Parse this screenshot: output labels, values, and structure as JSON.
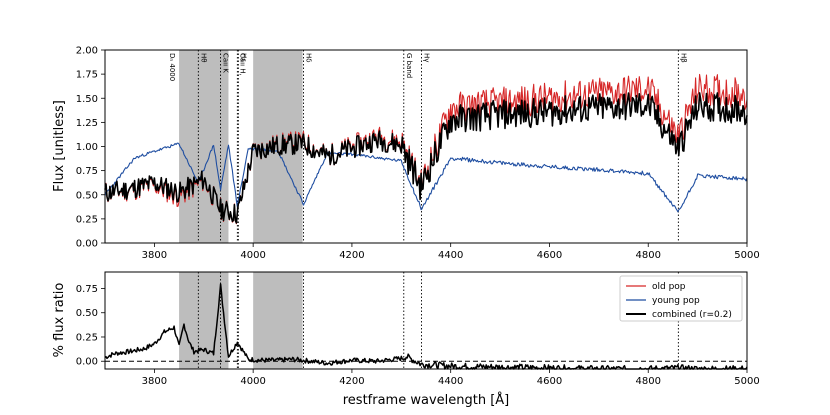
{
  "chart_data": [
    {
      "type": "line",
      "panel": "top",
      "ylabel": "Flux [unitless]",
      "xlim": [
        3700,
        5000
      ],
      "ylim": [
        0.0,
        2.0
      ],
      "xticks": [
        3800,
        4000,
        4200,
        4400,
        4600,
        4800,
        5000
      ],
      "yticks": [
        "0.00",
        "0.25",
        "0.50",
        "0.75",
        "1.00",
        "1.25",
        "1.50",
        "1.75",
        "2.00"
      ],
      "shaded_bands": [
        [
          3850,
          3950
        ],
        [
          4000,
          4100
        ]
      ],
      "band_label": "Dₙ 4000",
      "lines": [
        {
          "label": "Hθ",
          "x": 3889
        },
        {
          "label": "Caıı K",
          "x": 3934
        },
        {
          "label": "Caıı H,",
          "x": 3968
        },
        {
          "label": "Hε",
          "x": 3970
        },
        {
          "label": "Hδ",
          "x": 4102
        },
        {
          "label": "G band",
          "x": 4305
        },
        {
          "label": "Hγ",
          "x": 4341
        },
        {
          "label": "Hβ",
          "x": 4861
        }
      ],
      "series": [
        {
          "name": "old pop",
          "color": "#d62728",
          "x": [
            3700,
            3750,
            3800,
            3850,
            3900,
            3934,
            3968,
            4000,
            4050,
            4100,
            4150,
            4200,
            4250,
            4300,
            4340,
            4400,
            4500,
            4600,
            4700,
            4800,
            4861,
            4900,
            5000
          ],
          "y": [
            0.52,
            0.55,
            0.6,
            0.48,
            0.65,
            0.35,
            0.3,
            0.95,
            1.02,
            1.05,
            0.9,
            1.0,
            1.1,
            1.05,
            0.6,
            1.4,
            1.45,
            1.5,
            1.55,
            1.6,
            1.1,
            1.6,
            1.55
          ]
        },
        {
          "name": "young pop",
          "color": "#1f4ea1",
          "x": [
            3700,
            3760,
            3800,
            3850,
            3889,
            3920,
            3934,
            3950,
            3968,
            3990,
            4050,
            4102,
            4150,
            4200,
            4300,
            4341,
            4400,
            4500,
            4600,
            4700,
            4800,
            4861,
            4900,
            5000
          ],
          "y": [
            0.5,
            0.88,
            0.95,
            1.03,
            0.62,
            1.02,
            0.55,
            1.02,
            0.38,
            0.98,
            0.96,
            0.4,
            0.93,
            0.92,
            0.85,
            0.35,
            0.88,
            0.83,
            0.79,
            0.76,
            0.72,
            0.32,
            0.7,
            0.66
          ]
        },
        {
          "name": "combined (r=0.2)",
          "color": "#000000",
          "x": [
            3700,
            3750,
            3800,
            3850,
            3900,
            3934,
            3968,
            4000,
            4050,
            4100,
            4150,
            4200,
            4250,
            4300,
            4340,
            4400,
            4500,
            4600,
            4700,
            4800,
            4861,
            4900,
            5000
          ],
          "y": [
            0.52,
            0.56,
            0.62,
            0.52,
            0.66,
            0.35,
            0.3,
            0.95,
            1.01,
            1.03,
            0.9,
            0.98,
            1.07,
            1.02,
            0.58,
            1.28,
            1.33,
            1.36,
            1.4,
            1.43,
            0.98,
            1.42,
            1.38
          ]
        }
      ]
    },
    {
      "type": "line",
      "panel": "bottom",
      "ylabel": "% flux ratio",
      "xlabel": "restframe wavelength [Å]",
      "xlim": [
        3700,
        5000
      ],
      "ylim": [
        -0.08,
        0.92
      ],
      "yticks": [
        "0.00",
        "0.25",
        "0.50",
        "0.75"
      ],
      "xticks": [
        3800,
        4000,
        4200,
        4400,
        4600,
        4800,
        5000
      ],
      "reference_line": 0.0,
      "legend": [
        "old pop",
        "young pop",
        "combined (r=0.2)"
      ],
      "legend_position": "top-right",
      "series": [
        {
          "name": "combined (r=0.2)",
          "color": "#000000",
          "x": [
            3700,
            3720,
            3750,
            3780,
            3800,
            3820,
            3840,
            3850,
            3860,
            3870,
            3880,
            3900,
            3920,
            3934,
            3950,
            3968,
            3990,
            4020,
            4050,
            4080,
            4100,
            4150,
            4200,
            4250,
            4300,
            4310,
            4340,
            4400,
            4500,
            4600,
            4700,
            4800,
            4861,
            4900,
            5000
          ],
          "y": [
            0.04,
            0.08,
            0.1,
            0.13,
            0.18,
            0.3,
            0.35,
            0.15,
            0.38,
            0.2,
            0.1,
            0.12,
            0.08,
            0.78,
            0.05,
            0.2,
            0.02,
            0.01,
            0.01,
            0.02,
            0.01,
            -0.02,
            0.01,
            0.0,
            0.03,
            0.05,
            -0.03,
            -0.05,
            -0.06,
            -0.07,
            -0.08,
            -0.08,
            -0.07,
            -0.08,
            -0.08
          ]
        }
      ]
    }
  ]
}
